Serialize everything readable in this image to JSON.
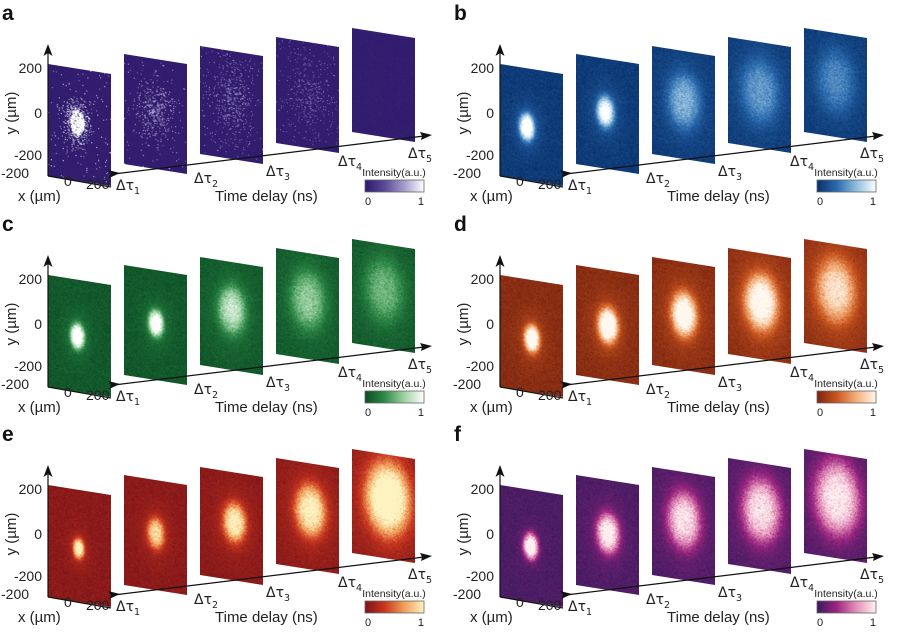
{
  "figure": {
    "panels": [
      {
        "letter": "a",
        "colormap": [
          "#2f1a6b",
          "#5a4a96",
          "#a59ccc",
          "#ffffff"
        ],
        "base": "#35227a",
        "render": "sparse",
        "frames": [
          {
            "label_sub": "1",
            "spot_x_um": -20,
            "spot_y_um": 10,
            "radius_um": 80,
            "peak": 1.0,
            "density": 0.9
          },
          {
            "label_sub": "2",
            "spot_x_um": 0,
            "spot_y_um": 10,
            "radius_um": 110,
            "peak": 0.8,
            "density": 0.35
          },
          {
            "label_sub": "3",
            "spot_x_um": 0,
            "spot_y_um": 30,
            "radius_um": 140,
            "peak": 0.7,
            "density": 0.25
          },
          {
            "label_sub": "4",
            "spot_x_um": 10,
            "spot_y_um": 0,
            "radius_um": 140,
            "peak": 0.6,
            "density": 0.18
          },
          {
            "label_sub": "5",
            "spot_x_um": 0,
            "spot_y_um": 0,
            "radius_um": 150,
            "peak": 0.1,
            "density": 0.01
          }
        ]
      },
      {
        "letter": "b",
        "colormap": [
          "#08306b",
          "#2a6aad",
          "#8fbddd",
          "#ffffff"
        ],
        "base": "#0c4a8a",
        "render": "smooth",
        "frames": [
          {
            "label_sub": "1",
            "spot_x_um": -40,
            "spot_y_um": -10,
            "radius_um": 60,
            "peak": 1.0,
            "halo": 0.35
          },
          {
            "label_sub": "2",
            "spot_x_um": -20,
            "spot_y_um": 10,
            "radius_um": 70,
            "peak": 0.85,
            "halo": 0.3
          },
          {
            "label_sub": "3",
            "spot_x_um": 0,
            "spot_y_um": 20,
            "radius_um": 130,
            "peak": 0.45,
            "halo": 0.2
          },
          {
            "label_sub": "4",
            "spot_x_um": 0,
            "spot_y_um": 20,
            "radius_um": 150,
            "peak": 0.35,
            "halo": 0.2
          },
          {
            "label_sub": "5",
            "spot_x_um": 0,
            "spot_y_um": 20,
            "radius_um": 150,
            "peak": 0.3,
            "halo": 0.15
          }
        ]
      },
      {
        "letter": "c",
        "colormap": [
          "#0b4d24",
          "#2e8a48",
          "#9fd3a5",
          "#ffffff"
        ],
        "base": "#0f5a2c",
        "render": "smooth",
        "frames": [
          {
            "label_sub": "1",
            "spot_x_um": -20,
            "spot_y_um": 0,
            "radius_um": 55,
            "peak": 1.0,
            "halo": 0.35
          },
          {
            "label_sub": "2",
            "spot_x_um": 0,
            "spot_y_um": 10,
            "radius_um": 60,
            "peak": 0.95,
            "halo": 0.3
          },
          {
            "label_sub": "3",
            "spot_x_um": 0,
            "spot_y_um": 30,
            "radius_um": 110,
            "peak": 0.6,
            "halo": 0.25
          },
          {
            "label_sub": "4",
            "spot_x_um": 0,
            "spot_y_um": 30,
            "radius_um": 140,
            "peak": 0.45,
            "halo": 0.2
          },
          {
            "label_sub": "5",
            "spot_x_um": 0,
            "spot_y_um": 30,
            "radius_um": 150,
            "peak": 0.35,
            "halo": 0.2
          }
        ]
      },
      {
        "letter": "d",
        "colormap": [
          "#7a2410",
          "#c9551f",
          "#f3b07a",
          "#fff8ef"
        ],
        "base": "#8a2e14",
        "render": "smooth",
        "frames": [
          {
            "label_sub": "1",
            "spot_x_um": 0,
            "spot_y_um": -10,
            "radius_um": 60,
            "peak": 1.0,
            "halo": 0.35
          },
          {
            "label_sub": "2",
            "spot_x_um": 0,
            "spot_y_um": 0,
            "radius_um": 80,
            "peak": 1.0,
            "halo": 0.35
          },
          {
            "label_sub": "3",
            "spot_x_um": 0,
            "spot_y_um": 10,
            "radius_um": 100,
            "peak": 0.95,
            "halo": 0.35
          },
          {
            "label_sub": "4",
            "spot_x_um": 10,
            "spot_y_um": 20,
            "radius_um": 130,
            "peak": 0.85,
            "halo": 0.4
          },
          {
            "label_sub": "5",
            "spot_x_um": 0,
            "spot_y_um": 30,
            "radius_um": 150,
            "peak": 0.6,
            "halo": 0.4
          }
        ]
      },
      {
        "letter": "e",
        "colormap": [
          "#7c1418",
          "#c9361f",
          "#f0a05a",
          "#fdf3c0"
        ],
        "base": "#7e1a1c",
        "render": "smooth",
        "frames": [
          {
            "label_sub": "1",
            "spot_x_um": -10,
            "spot_y_um": -10,
            "radius_um": 45,
            "peak": 0.85,
            "halo": 0.3
          },
          {
            "label_sub": "2",
            "spot_x_um": 0,
            "spot_y_um": 10,
            "radius_um": 70,
            "peak": 0.7,
            "halo": 0.25
          },
          {
            "label_sub": "3",
            "spot_x_um": 20,
            "spot_y_um": 20,
            "radius_um": 90,
            "peak": 0.8,
            "halo": 0.3
          },
          {
            "label_sub": "4",
            "spot_x_um": 20,
            "spot_y_um": 30,
            "radius_um": 120,
            "peak": 0.8,
            "halo": 0.35
          },
          {
            "label_sub": "5",
            "spot_x_um": 30,
            "spot_y_um": 40,
            "radius_um": 175,
            "peak": 0.95,
            "halo": 0.4
          }
        ]
      },
      {
        "letter": "f",
        "colormap": [
          "#3a1a5e",
          "#9c2580",
          "#e48fb8",
          "#fff2f2"
        ],
        "base": "#3c1d5e",
        "render": "smooth",
        "frames": [
          {
            "label_sub": "1",
            "spot_x_um": -10,
            "spot_y_um": 0,
            "radius_um": 60,
            "peak": 1.0,
            "halo": 0.1
          },
          {
            "label_sub": "2",
            "spot_x_um": 0,
            "spot_y_um": 10,
            "radius_um": 90,
            "peak": 0.85,
            "halo": 0.25
          },
          {
            "label_sub": "3",
            "spot_x_um": 0,
            "spot_y_um": 30,
            "radius_um": 130,
            "peak": 0.75,
            "halo": 0.25
          },
          {
            "label_sub": "4",
            "spot_x_um": 10,
            "spot_y_um": 30,
            "radius_um": 150,
            "peak": 0.75,
            "halo": 0.25
          },
          {
            "label_sub": "5",
            "spot_x_um": 10,
            "spot_y_um": 40,
            "radius_um": 175,
            "peak": 0.8,
            "halo": 0.25
          }
        ]
      }
    ],
    "axes": {
      "y_label": "y (µm)",
      "x_label": "x (µm)",
      "time_label": "Time delay (ns)",
      "y_ticks": [
        "200",
        "0",
        "-200"
      ],
      "x_ticks": [
        "-200",
        "0",
        "200"
      ],
      "tau_symbol": "Δτ",
      "colorbar_title": "Intensity(a.u.)",
      "colorbar_min": "0",
      "colorbar_max": "1"
    }
  }
}
